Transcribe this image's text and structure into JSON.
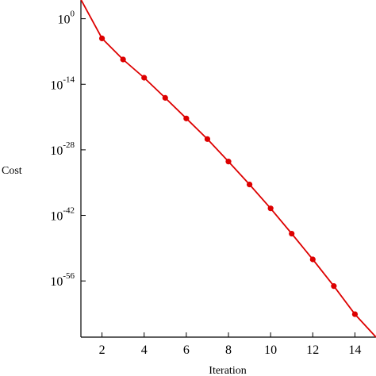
{
  "chart_data": {
    "type": "line",
    "title": "",
    "xlabel": "Iteration",
    "ylabel": "Cost",
    "x_ticks": [
      2,
      4,
      6,
      8,
      10,
      12,
      14
    ],
    "y_ticks": [
      {
        "base": "10",
        "exp": "0",
        "value": 1.0
      },
      {
        "base": "10",
        "exp": "-14",
        "value": 1e-14
      },
      {
        "base": "10",
        "exp": "-28",
        "value": 1e-28
      },
      {
        "base": "10",
        "exp": "-42",
        "value": 1e-42
      },
      {
        "base": "10",
        "exp": "-56",
        "value": 1e-56
      }
    ],
    "y_scale": "log",
    "xlim": [
      1,
      15
    ],
    "ylim_log10": [
      -68,
      4
    ],
    "grid": false,
    "legend": "none",
    "series": [
      {
        "color": "#dd0000",
        "marker": "circle",
        "line_x": [
          1,
          2,
          3,
          4,
          5,
          6,
          7,
          8,
          9,
          10,
          11,
          12,
          13,
          14,
          15
        ],
        "line_log10_y": [
          4.1,
          -4.2,
          -8.7,
          -12.6,
          -16.9,
          -21.3,
          -25.7,
          -30.5,
          -35.4,
          -40.5,
          -45.9,
          -51.4,
          -57.1,
          -63.1,
          -68.0
        ],
        "x": [
          2,
          3,
          4,
          5,
          6,
          7,
          8,
          9,
          10,
          11,
          12,
          13,
          14
        ],
        "log10_y": [
          -4.2,
          -8.7,
          -12.6,
          -16.9,
          -21.3,
          -25.7,
          -30.5,
          -35.4,
          -40.5,
          -45.9,
          -51.4,
          -57.1,
          -63.1
        ]
      }
    ]
  }
}
